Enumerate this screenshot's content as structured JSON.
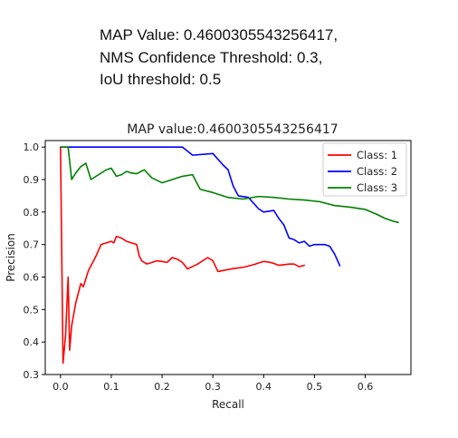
{
  "header": {
    "line1": "MAP Value: 0.4600305543256417,",
    "line2": "NMS Confidence Threshold: 0.3,",
    "line3": "IoU threshold: 0.5"
  },
  "chart_data": {
    "type": "line",
    "title": "MAP value:0.4600305543256417",
    "xlabel": "Recall",
    "ylabel": "Precision",
    "xlim": [
      -0.03,
      0.69
    ],
    "ylim": [
      0.3,
      1.02
    ],
    "xticks": [
      0.0,
      0.1,
      0.2,
      0.3,
      0.4,
      0.5,
      0.6
    ],
    "xtick_labels": [
      "0.0",
      "0.1",
      "0.2",
      "0.3",
      "0.4",
      "0.5",
      "0.6"
    ],
    "yticks": [
      0.3,
      0.4,
      0.5,
      0.6,
      0.7,
      0.8,
      0.9,
      1.0
    ],
    "ytick_labels": [
      "0.3",
      "0.4",
      "0.5",
      "0.6",
      "0.7",
      "0.8",
      "0.9",
      "1.0"
    ],
    "grid": false,
    "legend_position": "top-right",
    "series": [
      {
        "name": "Class: 1",
        "color": "#ff0000",
        "x": [
          0.0,
          0.005,
          0.01,
          0.015,
          0.018,
          0.022,
          0.03,
          0.04,
          0.045,
          0.055,
          0.06,
          0.07,
          0.08,
          0.09,
          0.1,
          0.105,
          0.11,
          0.12,
          0.13,
          0.14,
          0.15,
          0.155,
          0.16,
          0.17,
          0.18,
          0.19,
          0.2,
          0.21,
          0.22,
          0.23,
          0.24,
          0.25,
          0.27,
          0.29,
          0.3,
          0.31,
          0.32,
          0.34,
          0.36,
          0.38,
          0.4,
          0.41,
          0.42,
          0.43,
          0.45,
          0.46,
          0.47,
          0.48
        ],
        "y": [
          1.0,
          0.335,
          0.42,
          0.6,
          0.375,
          0.45,
          0.52,
          0.58,
          0.57,
          0.62,
          0.635,
          0.665,
          0.7,
          0.705,
          0.71,
          0.705,
          0.725,
          0.72,
          0.71,
          0.705,
          0.7,
          0.665,
          0.65,
          0.64,
          0.645,
          0.65,
          0.648,
          0.645,
          0.66,
          0.655,
          0.645,
          0.625,
          0.64,
          0.66,
          0.65,
          0.617,
          0.62,
          0.626,
          0.63,
          0.638,
          0.648,
          0.646,
          0.642,
          0.636,
          0.64,
          0.64,
          0.632,
          0.636
        ]
      },
      {
        "name": "Class: 2",
        "color": "#0000ff",
        "x": [
          0.0,
          0.24,
          0.26,
          0.3,
          0.32,
          0.33,
          0.34,
          0.35,
          0.37,
          0.39,
          0.4,
          0.42,
          0.43,
          0.44,
          0.45,
          0.46,
          0.47,
          0.48,
          0.49,
          0.5,
          0.51,
          0.52,
          0.53,
          0.54,
          0.55
        ],
        "y": [
          1.0,
          1.0,
          0.975,
          0.98,
          0.945,
          0.93,
          0.88,
          0.85,
          0.845,
          0.81,
          0.8,
          0.805,
          0.78,
          0.76,
          0.72,
          0.715,
          0.705,
          0.71,
          0.695,
          0.7,
          0.7,
          0.7,
          0.695,
          0.67,
          0.635
        ]
      },
      {
        "name": "Class: 3",
        "color": "#008000",
        "x": [
          0.0,
          0.015,
          0.022,
          0.03,
          0.04,
          0.05,
          0.06,
          0.075,
          0.09,
          0.1,
          0.11,
          0.12,
          0.13,
          0.14,
          0.15,
          0.165,
          0.18,
          0.2,
          0.22,
          0.24,
          0.26,
          0.275,
          0.3,
          0.33,
          0.36,
          0.39,
          0.42,
          0.45,
          0.48,
          0.51,
          0.54,
          0.57,
          0.6,
          0.62,
          0.64,
          0.655,
          0.665
        ],
        "y": [
          1.0,
          1.0,
          0.9,
          0.92,
          0.94,
          0.95,
          0.9,
          0.915,
          0.93,
          0.935,
          0.91,
          0.915,
          0.925,
          0.92,
          0.918,
          0.93,
          0.905,
          0.89,
          0.9,
          0.91,
          0.915,
          0.87,
          0.86,
          0.845,
          0.84,
          0.848,
          0.845,
          0.84,
          0.837,
          0.832,
          0.82,
          0.815,
          0.808,
          0.795,
          0.78,
          0.772,
          0.768
        ]
      }
    ]
  }
}
